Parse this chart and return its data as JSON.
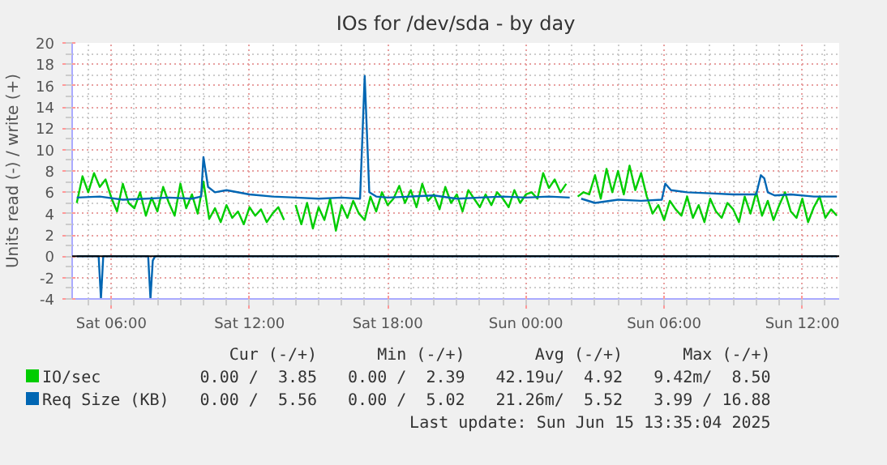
{
  "chart_data": {
    "type": "line",
    "title": "IOs for /dev/sda - by day",
    "ylabel": "Units read (-) / write (+)",
    "xlim": [
      "2025-06-14T04:18",
      "2025-06-15T13:36"
    ],
    "ylim": [
      -4,
      20
    ],
    "xticks": [
      {
        "value": "2025-06-14T06:00",
        "label": "Sat 06:00"
      },
      {
        "value": "2025-06-14T12:00",
        "label": "Sat 12:00"
      },
      {
        "value": "2025-06-14T18:00",
        "label": "Sat 18:00"
      },
      {
        "value": "2025-06-15T00:00",
        "label": "Sun 00:00"
      },
      {
        "value": "2025-06-15T06:00",
        "label": "Sun 06:00"
      },
      {
        "value": "2025-06-15T12:00",
        "label": "Sun 12:00"
      }
    ],
    "yticks": [
      -4,
      -2,
      0,
      2,
      4,
      6,
      8,
      10,
      12,
      14,
      16,
      18,
      20
    ],
    "grid": true,
    "legend": "bottom",
    "ref_lines": [
      {
        "axis": "y",
        "value": 0,
        "color": "#000000"
      }
    ],
    "series": [
      {
        "name": "IO/sec",
        "color": "#00cc00",
        "values": [
          5.0,
          7.5,
          6.0,
          7.8,
          6.5,
          7.2,
          5.5,
          4.2,
          6.8,
          5.0,
          4.5,
          6.0,
          3.8,
          5.5,
          4.2,
          6.5,
          5.0,
          3.8,
          6.8,
          4.5,
          5.8,
          4.0,
          7.0,
          3.5,
          4.5,
          3.2,
          4.8,
          3.6,
          4.2,
          3.0,
          4.6,
          3.8,
          4.4,
          3.2,
          4.0,
          4.6,
          3.4,
          null,
          4.8,
          3.0,
          5.0,
          2.6,
          4.6,
          3.4,
          5.4,
          2.4,
          4.8,
          3.6,
          5.2,
          4.0,
          3.4,
          5.6,
          4.2,
          6.0,
          4.8,
          5.4,
          6.6,
          5.0,
          6.2,
          4.6,
          6.8,
          5.2,
          5.8,
          4.4,
          6.5,
          5.0,
          5.8,
          4.2,
          6.2,
          5.4,
          4.6,
          5.8,
          4.8,
          6.0,
          5.4,
          4.6,
          6.2,
          5.0,
          5.8,
          6.0,
          5.4,
          7.8,
          6.4,
          7.2,
          6.0,
          6.8,
          null,
          5.6,
          6.0,
          5.8,
          7.6,
          5.4,
          8.2,
          6.0,
          8.0,
          5.8,
          8.5,
          6.2,
          7.8,
          5.6,
          4.0,
          4.8,
          3.4,
          5.2,
          4.4,
          3.8,
          5.6,
          3.6,
          4.8,
          3.2,
          5.4,
          4.2,
          3.6,
          5.0,
          4.4,
          3.2,
          5.6,
          4.0,
          6.0,
          3.8,
          5.2,
          3.4,
          4.8,
          6.0,
          4.2,
          3.6,
          5.4,
          3.2,
          4.6,
          5.6,
          3.6,
          4.4,
          3.8
        ],
        "x": [
          "2025-06-14T04:30",
          "2025-06-14T04:45",
          "2025-06-14T05:00",
          "2025-06-14T05:15",
          "2025-06-14T05:30",
          "2025-06-14T05:45",
          "2025-06-14T06:00",
          "2025-06-14T06:15",
          "2025-06-14T06:30",
          "2025-06-14T06:45",
          "2025-06-14T07:00",
          "2025-06-14T07:15",
          "2025-06-14T07:30",
          "2025-06-14T07:45",
          "2025-06-14T08:00",
          "2025-06-14T08:15",
          "2025-06-14T08:30",
          "2025-06-14T08:45",
          "2025-06-14T09:00",
          "2025-06-14T09:15",
          "2025-06-14T09:30",
          "2025-06-14T09:45",
          "2025-06-14T10:00",
          "2025-06-14T10:15",
          "2025-06-14T10:30",
          "2025-06-14T10:45",
          "2025-06-14T11:00",
          "2025-06-14T11:15",
          "2025-06-14T11:30",
          "2025-06-14T11:45",
          "2025-06-14T12:00",
          "2025-06-14T12:15",
          "2025-06-14T12:30",
          "2025-06-14T12:45",
          "2025-06-14T13:00",
          "2025-06-14T13:15",
          "2025-06-14T13:30",
          "2025-06-14T13:45",
          "2025-06-14T14:00",
          "2025-06-14T14:15",
          "2025-06-14T14:30",
          "2025-06-14T14:45",
          "2025-06-14T15:00",
          "2025-06-14T15:15",
          "2025-06-14T15:30",
          "2025-06-14T15:45",
          "2025-06-14T16:00",
          "2025-06-14T16:15",
          "2025-06-14T16:30",
          "2025-06-14T16:45",
          "2025-06-14T17:00",
          "2025-06-14T17:15",
          "2025-06-14T17:30",
          "2025-06-14T17:45",
          "2025-06-14T18:00",
          "2025-06-14T18:15",
          "2025-06-14T18:30",
          "2025-06-14T18:45",
          "2025-06-14T19:00",
          "2025-06-14T19:15",
          "2025-06-14T19:30",
          "2025-06-14T19:45",
          "2025-06-14T20:00",
          "2025-06-14T20:15",
          "2025-06-14T20:30",
          "2025-06-14T20:45",
          "2025-06-14T21:00",
          "2025-06-14T21:15",
          "2025-06-14T21:30",
          "2025-06-14T21:45",
          "2025-06-14T22:00",
          "2025-06-14T22:15",
          "2025-06-14T22:30",
          "2025-06-14T22:45",
          "2025-06-14T23:00",
          "2025-06-14T23:15",
          "2025-06-14T23:30",
          "2025-06-14T23:45",
          "2025-06-15T00:00",
          "2025-06-15T00:15",
          "2025-06-15T00:30",
          "2025-06-15T00:45",
          "2025-06-15T01:00",
          "2025-06-15T01:15",
          "2025-06-15T01:30",
          "2025-06-15T01:45",
          "2025-06-15T02:00",
          "2025-06-15T02:15",
          "2025-06-15T02:30",
          "2025-06-15T02:45",
          "2025-06-15T03:00",
          "2025-06-15T03:15",
          "2025-06-15T03:30",
          "2025-06-15T03:45",
          "2025-06-15T04:00",
          "2025-06-15T04:15",
          "2025-06-15T04:30",
          "2025-06-15T04:45",
          "2025-06-15T05:00",
          "2025-06-15T05:15",
          "2025-06-15T05:30",
          "2025-06-15T05:45",
          "2025-06-15T06:00",
          "2025-06-15T06:15",
          "2025-06-15T06:30",
          "2025-06-15T06:45",
          "2025-06-15T07:00",
          "2025-06-15T07:15",
          "2025-06-15T07:30",
          "2025-06-15T07:45",
          "2025-06-15T08:00",
          "2025-06-15T08:15",
          "2025-06-15T08:30",
          "2025-06-15T08:45",
          "2025-06-15T09:00",
          "2025-06-15T09:15",
          "2025-06-15T09:30",
          "2025-06-15T09:45",
          "2025-06-15T10:00",
          "2025-06-15T10:15",
          "2025-06-15T10:30",
          "2025-06-15T10:45",
          "2025-06-15T11:00",
          "2025-06-15T11:15",
          "2025-06-15T11:30",
          "2025-06-15T11:45",
          "2025-06-15T12:00",
          "2025-06-15T12:15",
          "2025-06-15T12:30",
          "2025-06-15T12:45",
          "2025-06-15T13:00",
          "2025-06-15T13:15",
          "2025-06-15T13:30"
        ]
      },
      {
        "name": "Req Size (KB)",
        "color": "#0066b3",
        "x": [
          "2025-06-14T04:30",
          "2025-06-14T05:30",
          "2025-06-14T06:30",
          "2025-06-14T07:30",
          "2025-06-14T08:30",
          "2025-06-14T09:30",
          "2025-06-14T09:54",
          "2025-06-14T10:00",
          "2025-06-14T10:12",
          "2025-06-14T10:30",
          "2025-06-14T11:00",
          "2025-06-14T12:00",
          "2025-06-14T13:00",
          "2025-06-14T14:00",
          "2025-06-14T15:00",
          "2025-06-14T16:00",
          "2025-06-14T16:48",
          "2025-06-14T17:00",
          "2025-06-14T17:12",
          "2025-06-14T17:30",
          "2025-06-14T18:00",
          "2025-06-14T19:00",
          "2025-06-14T20:00",
          "2025-06-14T21:00",
          "2025-06-14T22:00",
          "2025-06-14T23:00",
          "2025-06-15T00:00",
          "2025-06-15T01:00",
          "2025-06-15T01:54",
          "2025-06-15T02:00",
          "2025-06-15T02:24",
          "2025-06-15T03:00",
          "2025-06-15T04:00",
          "2025-06-15T05:00",
          "2025-06-15T05:54",
          "2025-06-15T06:03",
          "2025-06-15T06:18",
          "2025-06-15T07:00",
          "2025-06-15T08:00",
          "2025-06-15T09:00",
          "2025-06-15T10:00",
          "2025-06-15T10:12",
          "2025-06-15T10:21",
          "2025-06-15T10:30",
          "2025-06-15T10:48",
          "2025-06-15T11:30",
          "2025-06-15T12:30",
          "2025-06-15T13:30"
        ],
        "values": [
          5.5,
          5.6,
          5.3,
          5.4,
          5.5,
          5.4,
          5.6,
          9.3,
          6.5,
          6.0,
          6.2,
          5.8,
          5.6,
          5.5,
          5.4,
          5.5,
          5.4,
          16.9,
          6.0,
          5.6,
          5.5,
          5.6,
          5.7,
          5.4,
          5.5,
          5.6,
          5.5,
          5.6,
          5.5,
          null,
          5.4,
          5.0,
          5.3,
          5.2,
          5.3,
          6.8,
          6.2,
          6.0,
          5.9,
          5.8,
          5.8,
          7.6,
          7.3,
          6.0,
          5.7,
          5.8,
          5.6,
          5.6
        ]
      },
      {
        "color": "#0066b3",
        "x": [
          "2025-06-14T04:30",
          "2025-06-14T05:27",
          "2025-06-14T05:33",
          "2025-06-14T05:39",
          "2025-06-14T07:36",
          "2025-06-14T07:42",
          "2025-06-14T07:48",
          "2025-06-14T07:54",
          "2025-06-15T13:30"
        ],
        "values": [
          0,
          0,
          -4.0,
          0,
          0,
          -4.0,
          -0.4,
          0,
          0
        ]
      }
    ],
    "annotations": [
      "Cur (-/+)",
      "Min (-/+)",
      "Avg (-/+)",
      "Max (-/+)",
      "0.00 /  3.85",
      "0.00 /  2.39",
      "42.19u/  4.92",
      "9.42m/  8.50",
      "0.00 /  5.56",
      "0.00 /  5.02",
      "21.26m/  5.52",
      "3.99 / 16.88",
      "Last update: Sun Jun 15 13:35:04 2025"
    ]
  }
}
